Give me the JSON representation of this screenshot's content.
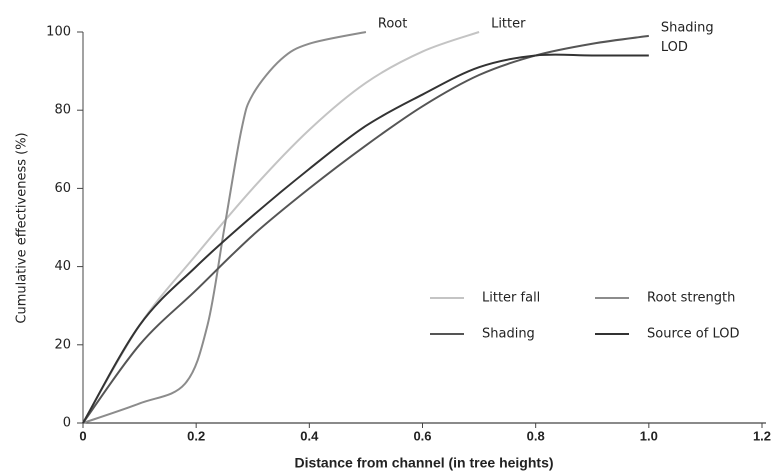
{
  "chart_data": {
    "type": "line",
    "xlabel": "Distance from channel (in tree heights)",
    "ylabel": "Cumulative effectiveness (%)",
    "xlim": [
      0,
      1.2
    ],
    "xticks": [
      0,
      0.2,
      0.4,
      0.6,
      0.8,
      {
        "value": 1,
        "label": "1.0"
      },
      1.2
    ],
    "ylim": [
      0,
      100
    ],
    "yticks": [
      0,
      20,
      40,
      60,
      80,
      100
    ],
    "grid": false,
    "legend": "lower right",
    "series": [
      {
        "name": "Litter fall",
        "end_label": "Litter",
        "color": "#c4c4c4",
        "x": [
          0,
          0.1,
          0.2,
          0.3,
          0.4,
          0.5,
          0.6,
          0.7
        ],
        "values": [
          0,
          25,
          43,
          60,
          75,
          87,
          95,
          100
        ]
      },
      {
        "name": "Root strength",
        "end_label": "Root",
        "color": "#8c8c8c",
        "x": [
          0,
          0.1,
          0.18,
          0.22,
          0.25,
          0.28,
          0.3,
          0.35,
          0.4,
          0.5
        ],
        "values": [
          0,
          5,
          10,
          25,
          50,
          75,
          84,
          93,
          97,
          100
        ]
      },
      {
        "name": "Shading",
        "end_label": "Shading",
        "color": "#555555",
        "x": [
          0,
          0.1,
          0.2,
          0.3,
          0.4,
          0.5,
          0.6,
          0.7,
          0.8,
          0.9,
          1
        ],
        "values": [
          0,
          20,
          34,
          48,
          60,
          71,
          81,
          89,
          94,
          97,
          99
        ]
      },
      {
        "name": "Source of LOD",
        "end_label": "LOD",
        "color": "#333333",
        "x": [
          0,
          0.1,
          0.2,
          0.3,
          0.4,
          0.5,
          0.6,
          0.7,
          0.8,
          0.9,
          1
        ],
        "values": [
          0,
          25,
          40,
          53,
          65,
          76,
          84,
          91,
          94,
          94,
          94
        ]
      }
    ]
  }
}
